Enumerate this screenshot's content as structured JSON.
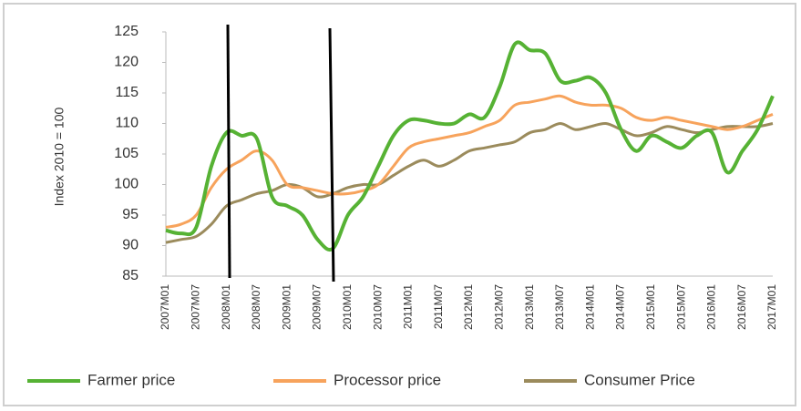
{
  "chart_data": {
    "type": "line",
    "y_label": "Index 2010 = 100",
    "categories": [
      "2007M01",
      null,
      "2007M07",
      null,
      "2008M01",
      null,
      "2008M07",
      null,
      "2009M01",
      null,
      "2009M07",
      null,
      "2010M01",
      null,
      "2010M07",
      null,
      "2011M01",
      null,
      "2011M07",
      null,
      "2012M01",
      null,
      "2012M07",
      null,
      "2013M01",
      null,
      "2013M07",
      null,
      "2014M01",
      null,
      "2014M07",
      null,
      "2015M01",
      null,
      "2015M07",
      null,
      "2016M01",
      null,
      "2016M07",
      null,
      "2017M01"
    ],
    "series": [
      {
        "name": "Farmer price",
        "color": "#56b234",
        "values": [
          92.5,
          92,
          93,
          103,
          108.5,
          108,
          107.5,
          98,
          96.5,
          95,
          91,
          89.5,
          95,
          98,
          103,
          108,
          110.5,
          110.5,
          110,
          110,
          111.5,
          111,
          116,
          123,
          122,
          121.5,
          117,
          117,
          117.5,
          115,
          109,
          105.5,
          108,
          107,
          106,
          108,
          108.5,
          102,
          105.5,
          109,
          114.5
        ]
      },
      {
        "name": "Processor price",
        "color": "#f7a35c",
        "values": [
          93,
          93.5,
          95,
          99.5,
          102.5,
          104,
          105.5,
          104,
          100,
          99.5,
          99,
          98.5,
          98.5,
          99,
          100,
          103,
          106,
          107,
          107.5,
          108,
          108.5,
          109.5,
          110.5,
          113,
          113.5,
          114,
          114.5,
          113.5,
          113,
          113,
          112.5,
          111,
          110.5,
          111,
          110.5,
          110,
          109.5,
          109,
          109.5,
          110.5,
          111.5
        ]
      },
      {
        "name": "Consumer Price",
        "color": "#9b8b5c",
        "values": [
          90.5,
          91,
          91.5,
          93.5,
          96.5,
          97.5,
          98.5,
          99,
          100,
          99.5,
          98,
          98.5,
          99.5,
          100,
          100,
          101.5,
          103,
          104,
          103,
          104,
          105.5,
          106,
          106.5,
          107,
          108.5,
          109,
          110,
          109,
          109.5,
          110,
          109,
          108,
          108.5,
          109.5,
          109,
          108.5,
          109,
          109.5,
          109.5,
          109.5,
          110
        ]
      }
    ],
    "ylim": [
      85,
      125
    ],
    "yticks": [
      85,
      90,
      95,
      100,
      105,
      110,
      115,
      120,
      125
    ],
    "grid": false,
    "legend": "bottom"
  }
}
